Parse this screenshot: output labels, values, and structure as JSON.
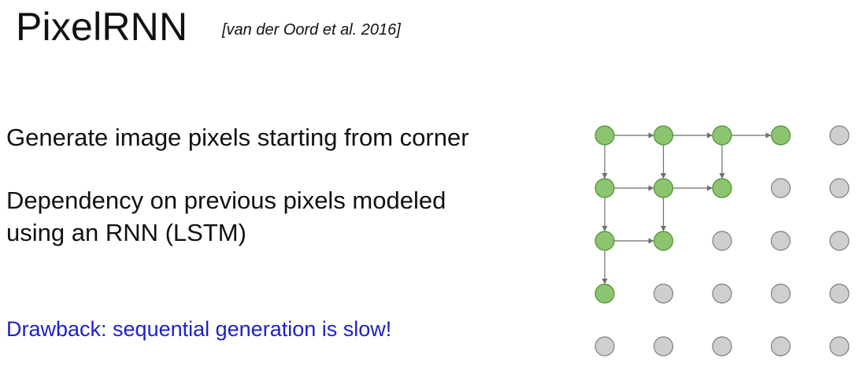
{
  "slide": {
    "title": "PixelRNN",
    "citation": "[van der Oord et al. 2016]",
    "bullets": [
      "Generate image pixels starting from corner",
      "Dependency on previous pixels modeled",
      "using an RNN (LSTM)"
    ],
    "drawback": "Drawback: sequential generation is slow!"
  },
  "diagram": {
    "grid": {
      "rows": 5,
      "cols": 5
    },
    "generated_cells": [
      [
        0,
        0
      ],
      [
        0,
        1
      ],
      [
        0,
        2
      ],
      [
        0,
        3
      ],
      [
        1,
        0
      ],
      [
        1,
        1
      ],
      [
        1,
        2
      ],
      [
        2,
        0
      ],
      [
        2,
        1
      ],
      [
        3,
        0
      ]
    ],
    "edges": [
      [
        [
          0,
          0
        ],
        [
          0,
          1
        ]
      ],
      [
        [
          0,
          1
        ],
        [
          0,
          2
        ]
      ],
      [
        [
          0,
          2
        ],
        [
          0,
          3
        ]
      ],
      [
        [
          0,
          0
        ],
        [
          1,
          0
        ]
      ],
      [
        [
          0,
          1
        ],
        [
          1,
          1
        ]
      ],
      [
        [
          0,
          2
        ],
        [
          1,
          2
        ]
      ],
      [
        [
          1,
          0
        ],
        [
          1,
          1
        ]
      ],
      [
        [
          1,
          1
        ],
        [
          1,
          2
        ]
      ],
      [
        [
          1,
          0
        ],
        [
          2,
          0
        ]
      ],
      [
        [
          1,
          1
        ],
        [
          2,
          1
        ]
      ],
      [
        [
          2,
          0
        ],
        [
          2,
          1
        ]
      ],
      [
        [
          2,
          0
        ],
        [
          3,
          0
        ]
      ]
    ],
    "colors": {
      "generated_fill": "#8cc46f",
      "generated_stroke": "#4f8f31",
      "pending_fill": "#cfcfcf",
      "pending_stroke": "#7f7f7f",
      "arrow": "#6f6f6f"
    }
  }
}
